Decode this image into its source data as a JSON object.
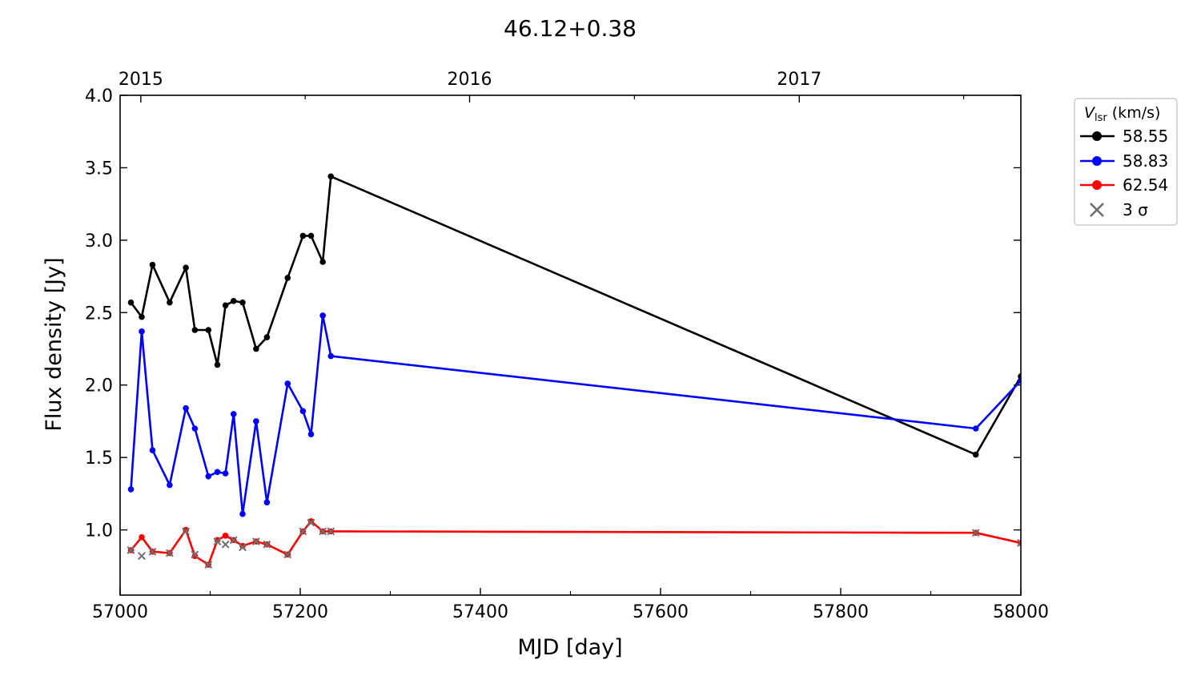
{
  "chart_data": {
    "type": "line",
    "title": "46.12+0.38",
    "xlabel": "MJD [day]",
    "ylabel": "Flux density [Jy]",
    "xlim": [
      57000,
      58000
    ],
    "ylim": [
      0.55,
      4.0
    ],
    "x_ticks": [
      57000,
      57200,
      57400,
      57600,
      57800,
      58000
    ],
    "y_ticks": [
      1.0,
      1.5,
      2.0,
      2.5,
      3.0,
      3.5,
      4.0
    ],
    "x_tick_labels": [
      "57000",
      "57200",
      "57400",
      "57600",
      "57800",
      "58000"
    ],
    "y_tick_labels": [
      "1.0",
      "1.5",
      "2.0",
      "2.5",
      "3.0",
      "3.5",
      "4.0"
    ],
    "top_axis": {
      "ticks": [
        57023,
        57388,
        57754
      ],
      "labels": [
        "2015",
        "2016",
        "2017"
      ]
    },
    "grid": false,
    "legend": {
      "placement": "outside-right-top",
      "title_main": "V",
      "title_sub": "lsr",
      "title_unit": " (km/s)",
      "sigma_label": "3 σ"
    },
    "series": [
      {
        "name": "58.55",
        "color": "#000000",
        "x": [
          57012,
          57024,
          57036,
          57055,
          57073,
          57083,
          57098,
          57108,
          57117,
          57126,
          57136,
          57151,
          57163,
          57186,
          57203,
          57212,
          57225,
          57234,
          57950,
          58000
        ],
        "y": [
          2.57,
          2.47,
          2.83,
          2.57,
          2.81,
          2.38,
          2.38,
          2.14,
          2.55,
          2.58,
          2.57,
          2.25,
          2.33,
          2.74,
          3.03,
          3.03,
          2.85,
          3.44,
          1.52,
          2.06
        ]
      },
      {
        "name": "58.83",
        "color": "#0000ff",
        "x": [
          57012,
          57024,
          57036,
          57055,
          57073,
          57083,
          57098,
          57108,
          57117,
          57126,
          57136,
          57151,
          57163,
          57186,
          57203,
          57212,
          57225,
          57234,
          57950,
          58000
        ],
        "y": [
          1.28,
          2.37,
          1.55,
          1.31,
          1.84,
          1.7,
          1.37,
          1.4,
          1.39,
          1.8,
          1.11,
          1.75,
          1.19,
          2.01,
          1.82,
          1.66,
          2.48,
          2.2,
          1.7,
          2.03
        ]
      },
      {
        "name": "62.54",
        "color": "#ff0000",
        "x": [
          57012,
          57024,
          57036,
          57055,
          57073,
          57083,
          57098,
          57108,
          57117,
          57126,
          57136,
          57151,
          57163,
          57186,
          57203,
          57212,
          57225,
          57234,
          57950,
          58000
        ],
        "y": [
          0.86,
          0.95,
          0.85,
          0.84,
          1.0,
          0.82,
          0.76,
          0.93,
          0.96,
          0.93,
          0.89,
          0.92,
          0.9,
          0.83,
          0.99,
          1.06,
          0.99,
          0.99,
          0.98,
          0.91
        ]
      }
    ],
    "sigma3": {
      "name": "3 σ",
      "color": "#6e6e6e",
      "x": [
        57012,
        57024,
        57036,
        57055,
        57073,
        57083,
        57098,
        57108,
        57117,
        57126,
        57136,
        57151,
        57163,
        57186,
        57203,
        57212,
        57225,
        57234,
        57950,
        58000
      ],
      "y": [
        0.86,
        0.82,
        0.85,
        0.84,
        0.99,
        0.83,
        0.76,
        0.92,
        0.9,
        0.93,
        0.88,
        0.92,
        0.9,
        0.83,
        0.99,
        1.05,
        0.99,
        0.99,
        0.98,
        0.91
      ]
    }
  }
}
